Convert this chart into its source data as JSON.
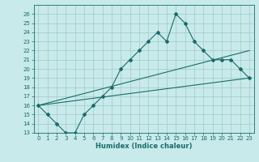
{
  "xlabel": "Humidex (Indice chaleur)",
  "ylabel": "",
  "bg_color": "#c8eaea",
  "grid_color": "#a0c8c8",
  "line_color": "#1a6b6b",
  "xlim": [
    -0.5,
    23.5
  ],
  "ylim": [
    13,
    27
  ],
  "xticks": [
    0,
    1,
    2,
    3,
    4,
    5,
    6,
    7,
    8,
    9,
    10,
    11,
    12,
    13,
    14,
    15,
    16,
    17,
    18,
    19,
    20,
    21,
    22,
    23
  ],
  "yticks": [
    13,
    14,
    15,
    16,
    17,
    18,
    19,
    20,
    21,
    22,
    23,
    24,
    25,
    26
  ],
  "curve1_x": [
    0,
    1,
    2,
    3,
    4,
    5,
    6,
    7,
    8,
    9,
    10,
    11,
    12,
    13,
    14,
    15,
    16,
    17,
    18,
    19,
    20,
    21,
    22,
    23
  ],
  "curve1_y": [
    16,
    15,
    14,
    13,
    13,
    15,
    16,
    17,
    18,
    20,
    21,
    22,
    23,
    24,
    23,
    26,
    25,
    23,
    22,
    21,
    21,
    21,
    20,
    19
  ],
  "curve2_x": [
    0,
    23
  ],
  "curve2_y": [
    16,
    19
  ],
  "curve3_x": [
    0,
    23
  ],
  "curve3_y": [
    16,
    22
  ],
  "tick_fontsize": 5,
  "xlabel_fontsize": 6,
  "marker": "D",
  "markersize": 2,
  "linewidth": 0.8
}
